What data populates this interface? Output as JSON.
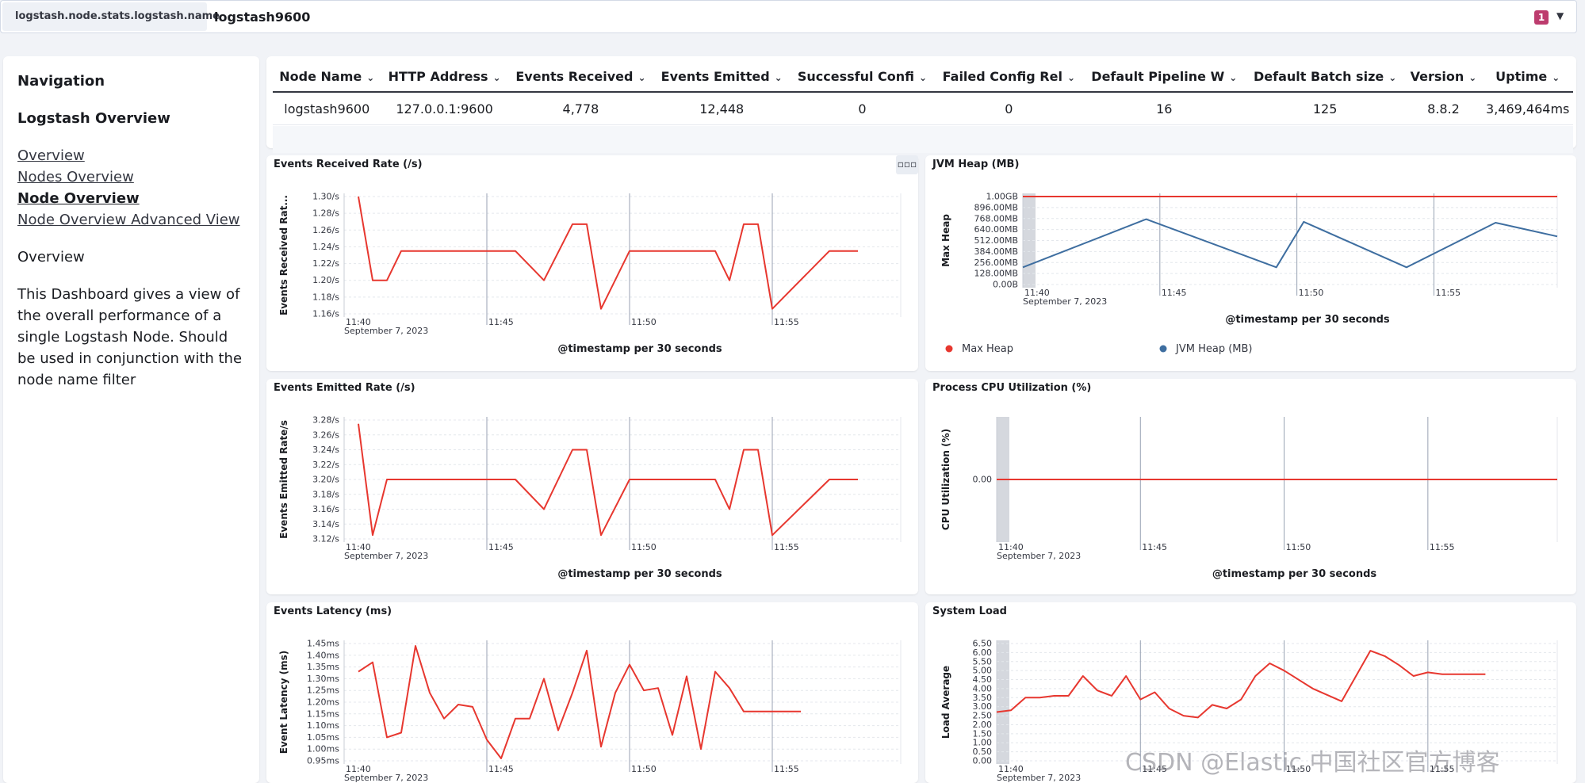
{
  "filter": {
    "field": "logstash.node.stats.logstash.name",
    "value": "logstash9600",
    "count": "1"
  },
  "nav": {
    "heading": "Navigation",
    "section": "Logstash Overview",
    "links": [
      "Overview",
      "Nodes Overview",
      "Node Overview",
      "Node Overview Advanced View"
    ],
    "active_link": "Node Overview",
    "overview_label": "Overview",
    "description": "This Dashboard gives a view of the overall performance of a single Logstash Node. Should be used in conjunction with the node name filter"
  },
  "table": {
    "headers": [
      "Node Name",
      "HTTP Address",
      "Events Received",
      "Events Emitted",
      "Successful Confi",
      "Failed Config Rel",
      "Default Pipeline W",
      "Default Batch size",
      "Version",
      "Uptime"
    ],
    "row": [
      "logstash9600",
      "127.0.0.1:9600",
      "4,778",
      "12,448",
      "0",
      "0",
      "16",
      "125",
      "8.8.2",
      "3,469,464ms"
    ]
  },
  "colors": {
    "red": "#e7372f",
    "blue": "#3e6ea0",
    "badge": "#bd3c6e",
    "grid": "#c9ced6",
    "shade": "#d5d8de"
  },
  "time_axis": {
    "ticks": [
      "11:40",
      "11:45",
      "11:50",
      "11:55"
    ],
    "date": "September 7, 2023",
    "xlabel": "@timestamp per 30 seconds"
  },
  "panel_menu_icon": "more-icon",
  "chart_data": [
    {
      "id": "events-received",
      "type": "line",
      "title": "Events Received Rate (/s)",
      "ylabel": "Events Received Rat...",
      "ylim": [
        1.16,
        1.3
      ],
      "yticks": [
        1.3,
        1.28,
        1.26,
        1.24,
        1.22,
        1.2,
        1.18,
        1.16
      ],
      "ytick_labels": [
        "1.30/s",
        "1.28/s",
        "1.26/s",
        "1.24/s",
        "1.22/s",
        "1.20/s",
        "1.18/s",
        "1.16/s"
      ],
      "series": [
        {
          "color": "#e7372f",
          "x": [
            "11:40:30",
            "11:41",
            "11:41:30",
            "11:42",
            "11:43",
            "11:44",
            "11:45",
            "11:46",
            "11:47",
            "11:48",
            "11:48:30",
            "11:49",
            "11:50",
            "11:51",
            "11:52",
            "11:53",
            "11:53:30",
            "11:54",
            "11:54:30",
            "11:55",
            "11:57",
            "11:58"
          ],
          "values": [
            1.3,
            1.2,
            1.2,
            1.235,
            1.235,
            1.235,
            1.235,
            1.235,
            1.2,
            1.267,
            1.267,
            1.166,
            1.235,
            1.235,
            1.235,
            1.235,
            1.2,
            1.267,
            1.267,
            1.166,
            1.235,
            1.235
          ]
        }
      ]
    },
    {
      "id": "jvm-heap",
      "type": "line",
      "title": "JVM Heap (MB)",
      "ylabel": "Max Heap",
      "ylim": [
        0,
        1024
      ],
      "yticks": [
        1024,
        896,
        768,
        640,
        512,
        384,
        256,
        128,
        0
      ],
      "ytick_labels": [
        "1.00GB",
        "896.00MB",
        "768.00MB",
        "640.00MB",
        "512.00MB",
        "384.00MB",
        "256.00MB",
        "128.00MB",
        "0.00B"
      ],
      "legend": "bottom",
      "series": [
        {
          "name": "Max Heap",
          "color": "#e7372f",
          "x": [
            "11:40",
            "11:59:30"
          ],
          "values": [
            1024,
            1024
          ]
        },
        {
          "name": "JVM Heap (MB)",
          "color": "#3e6ea0",
          "x": [
            "11:40",
            "11:44:30",
            "11:49:15",
            "11:50:15",
            "11:54",
            "11:57:15",
            "11:59:30"
          ],
          "values": [
            200,
            760,
            200,
            730,
            200,
            720,
            560
          ]
        }
      ]
    },
    {
      "id": "events-emitted",
      "type": "line",
      "title": "Events Emitted Rate (/s)",
      "ylabel": "Events Emitted Rate/s",
      "ylim": [
        3.12,
        3.28
      ],
      "yticks": [
        3.28,
        3.26,
        3.24,
        3.22,
        3.2,
        3.18,
        3.16,
        3.14,
        3.12
      ],
      "ytick_labels": [
        "3.28/s",
        "3.26/s",
        "3.24/s",
        "3.22/s",
        "3.20/s",
        "3.18/s",
        "3.16/s",
        "3.14/s",
        "3.12/s"
      ],
      "series": [
        {
          "color": "#e7372f",
          "x": [
            "11:40:30",
            "11:41",
            "11:41:30",
            "11:42",
            "11:43",
            "11:44",
            "11:45",
            "11:46",
            "11:47",
            "11:48",
            "11:48:30",
            "11:49",
            "11:50",
            "11:51",
            "11:52",
            "11:53",
            "11:53:30",
            "11:54",
            "11:54:30",
            "11:55",
            "11:57",
            "11:58"
          ],
          "values": [
            3.275,
            3.125,
            3.2,
            3.2,
            3.2,
            3.2,
            3.2,
            3.2,
            3.16,
            3.24,
            3.24,
            3.125,
            3.2,
            3.2,
            3.2,
            3.2,
            3.16,
            3.24,
            3.24,
            3.125,
            3.2,
            3.2
          ]
        }
      ]
    },
    {
      "id": "cpu",
      "type": "line",
      "title": "Process CPU Utilization (%)",
      "ylabel": "CPU Utilization (%)",
      "ylim": [
        -1,
        1
      ],
      "yticks": [
        0
      ],
      "ytick_labels": [
        "0.00"
      ],
      "series": [
        {
          "color": "#e7372f",
          "x": [
            "11:40",
            "11:59:30"
          ],
          "values": [
            0,
            0
          ]
        }
      ]
    },
    {
      "id": "latency",
      "type": "line",
      "title": "Events Latency (ms)",
      "ylabel": "Event Latency (ms)",
      "ylim": [
        0.95,
        1.45
      ],
      "yticks": [
        1.45,
        1.4,
        1.35,
        1.3,
        1.25,
        1.2,
        1.15,
        1.1,
        1.05,
        1.0,
        0.95
      ],
      "ytick_labels": [
        "1.45ms",
        "1.40ms",
        "1.35ms",
        "1.30ms",
        "1.25ms",
        "1.20ms",
        "1.15ms",
        "1.10ms",
        "1.05ms",
        "1.00ms",
        "0.95ms"
      ],
      "series": [
        {
          "color": "#e7372f",
          "x": [
            "11:40:30",
            "11:41",
            "11:41:30",
            "11:42",
            "11:42:30",
            "11:43",
            "11:43:30",
            "11:44",
            "11:44:30",
            "11:45",
            "11:45:30",
            "11:46",
            "11:46:30",
            "11:47",
            "11:47:30",
            "11:48",
            "11:48:30",
            "11:49",
            "11:49:30",
            "11:50",
            "11:50:30",
            "11:51",
            "11:51:30",
            "11:52",
            "11:52:30",
            "11:53",
            "11:53:30",
            "11:54",
            "11:54:30",
            "11:55",
            "11:55:30",
            "11:56"
          ],
          "values": [
            1.33,
            1.37,
            1.05,
            1.07,
            1.44,
            1.24,
            1.13,
            1.19,
            1.18,
            1.04,
            0.96,
            1.13,
            1.13,
            1.3,
            1.08,
            1.24,
            1.42,
            1.01,
            1.24,
            1.36,
            1.25,
            1.26,
            1.06,
            1.31,
            1.0,
            1.33,
            1.26,
            1.16,
            1.16,
            1.16,
            1.16,
            1.16
          ]
        }
      ]
    },
    {
      "id": "system-load",
      "type": "line",
      "title": "System Load",
      "ylabel": "Load Average",
      "ylim": [
        0,
        6.5
      ],
      "yticks": [
        6.5,
        6.0,
        5.5,
        5.0,
        4.5,
        4.0,
        3.5,
        3.0,
        2.5,
        2.0,
        1.5,
        1.0,
        0.5,
        0.0
      ],
      "ytick_labels": [
        "6.50",
        "6.00",
        "5.50",
        "5.00",
        "4.50",
        "4.00",
        "3.50",
        "3.00",
        "2.50",
        "2.00",
        "1.50",
        "1.00",
        "0.50",
        "0.00"
      ],
      "series": [
        {
          "color": "#e7372f",
          "x": [
            "11:40",
            "11:40:30",
            "11:41",
            "11:41:30",
            "11:42",
            "11:42:30",
            "11:43",
            "11:43:30",
            "11:44",
            "11:44:30",
            "11:45",
            "11:45:30",
            "11:46",
            "11:46:30",
            "11:47",
            "11:47:30",
            "11:48",
            "11:48:30",
            "11:49",
            "11:49:30",
            "11:50",
            "11:51",
            "11:52",
            "11:53",
            "11:53:30",
            "11:54",
            "11:54:30",
            "11:55",
            "11:55:30",
            "11:56",
            "11:56:30",
            "11:57"
          ],
          "values": [
            2.7,
            2.8,
            3.5,
            3.5,
            3.6,
            3.6,
            4.7,
            3.9,
            3.6,
            4.7,
            3.4,
            3.8,
            2.9,
            2.5,
            2.4,
            3.1,
            2.9,
            3.4,
            4.7,
            5.4,
            5.0,
            4.0,
            3.3,
            6.1,
            5.8,
            5.3,
            4.7,
            4.9,
            4.8,
            4.8,
            4.8,
            4.8
          ]
        }
      ]
    }
  ]
}
